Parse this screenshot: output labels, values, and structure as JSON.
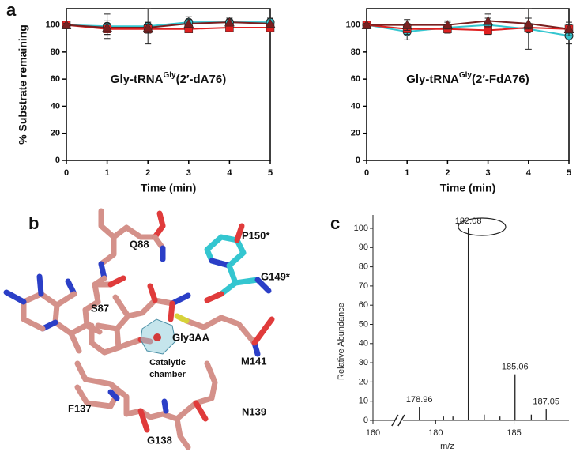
{
  "panels": [
    "a",
    "b",
    "c"
  ],
  "structure": {
    "labels": [
      "Q88",
      "P150*",
      "G149*",
      "S87",
      "Gly3AA",
      "M141",
      "Catalytic",
      "chamber",
      "F137",
      "N139",
      "G138"
    ]
  },
  "chart_data": [
    {
      "type": "line",
      "annotation": [
        "Gly-tRNA",
        "Gly",
        "(2′-dA76)"
      ],
      "ylabel": "% Substrate remaining",
      "xlabel": "Time (min)",
      "x": [
        0,
        1,
        2,
        3,
        4,
        5
      ],
      "series": [
        {
          "color": "#34c6d0",
          "marker": "circle",
          "values": [
            100,
            99,
            99,
            102,
            102,
            102
          ],
          "errors": [
            1,
            9,
            13,
            4,
            3,
            3
          ]
        },
        {
          "color": "#e02020",
          "marker": "square",
          "values": [
            100,
            97,
            97,
            97,
            98,
            98
          ],
          "errors": [
            1,
            4,
            3,
            2,
            3,
            3
          ]
        },
        {
          "color": "#7a1f1f",
          "marker": "triangle",
          "values": [
            100,
            98,
            98,
            101,
            102,
            101
          ],
          "errors": [
            1,
            5,
            4,
            3,
            2,
            2
          ]
        }
      ],
      "xlim": [
        0,
        5
      ],
      "xticks": [
        0,
        1,
        2,
        3,
        4,
        5
      ],
      "ylim": [
        0,
        112
      ],
      "yticks": [
        0,
        20,
        40,
        60,
        80,
        100
      ]
    },
    {
      "type": "line",
      "annotation": [
        "Gly-tRNA",
        "Gly",
        "(2′-FdA76)"
      ],
      "xlabel": "Time (min)",
      "x": [
        0,
        1,
        2,
        3,
        4,
        5
      ],
      "series": [
        {
          "color": "#34c6d0",
          "marker": "circle",
          "values": [
            100,
            95,
            98,
            100,
            97,
            92
          ],
          "errors": [
            1,
            6,
            4,
            5,
            15,
            6
          ]
        },
        {
          "color": "#e02020",
          "marker": "square",
          "values": [
            100,
            97,
            97,
            96,
            98,
            97
          ],
          "errors": [
            1,
            4,
            3,
            3,
            3,
            3
          ]
        },
        {
          "color": "#7a1f1f",
          "marker": "triangle",
          "values": [
            100,
            100,
            100,
            103,
            101,
            97
          ],
          "errors": [
            1,
            4,
            3,
            5,
            4,
            5
          ]
        }
      ],
      "xlim": [
        0,
        5
      ],
      "xticks": [
        0,
        1,
        2,
        3,
        4,
        5
      ],
      "ylim": [
        0,
        112
      ],
      "yticks": [
        0,
        20,
        40,
        60,
        80,
        100
      ]
    },
    {
      "type": "spectrum",
      "xlabel": "m/z",
      "ylabel": "Relative Abundance",
      "series": [
        {
          "labeled": true,
          "x": [
            178.96,
            182.08,
            185.06,
            187.05
          ],
          "values": [
            7,
            100,
            24,
            6
          ]
        },
        {
          "labeled": false,
          "x": [
            180.5,
            181.1,
            183.1,
            184.1,
            186.1
          ],
          "values": [
            2,
            2,
            3,
            2,
            3
          ]
        }
      ],
      "xlim": [
        160,
        188.5
      ],
      "xbreak": [
        161,
        177
      ],
      "xticks": [
        160,
        180,
        185
      ],
      "ylim": [
        0,
        100
      ],
      "yticks": [
        0,
        10,
        20,
        30,
        40,
        50,
        60,
        70,
        80,
        90,
        100
      ]
    }
  ]
}
